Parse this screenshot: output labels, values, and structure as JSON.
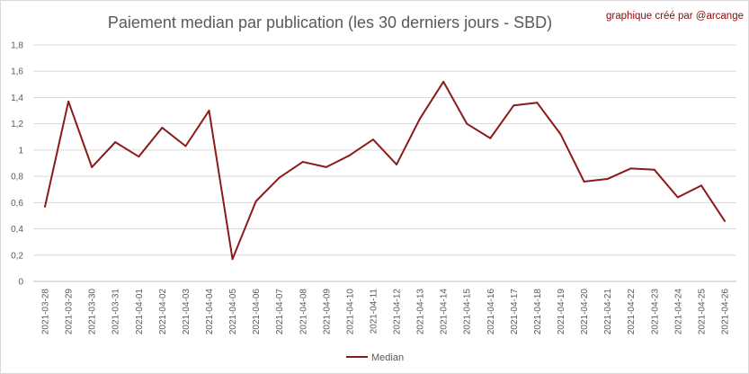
{
  "chart_data": {
    "type": "line",
    "title": "Paiement median par publication (les 30 derniers jours - SBD)",
    "credit": "graphique créé par @arcange",
    "xlabel": "",
    "ylabel": "",
    "ylim": [
      0,
      1.8
    ],
    "yticks": [
      "0",
      "0,2",
      "0,4",
      "0,6",
      "0,8",
      "1",
      "1,2",
      "1,4",
      "1,6",
      "1,8"
    ],
    "grid": true,
    "legend_position": "bottom",
    "categories": [
      "2021-03-28",
      "2021-03-29",
      "2021-03-30",
      "2021-03-31",
      "2021-04-01",
      "2021-04-02",
      "2021-04-03",
      "2021-04-04",
      "2021-04-05",
      "2021-04-06",
      "2021-04-07",
      "2021-04-08",
      "2021-04-09",
      "2021-04-10",
      "2021-04-11",
      "2021-04-12",
      "2021-04-13",
      "2021-04-14",
      "2021-04-15",
      "2021-04-16",
      "2021-04-17",
      "2021-04-18",
      "2021-04-19",
      "2021-04-20",
      "2021-04-21",
      "2021-04-22",
      "2021-04-23",
      "2021-04-24",
      "2021-04-25",
      "2021-04-26"
    ],
    "series": [
      {
        "name": "Median",
        "color": "#8b1a1a",
        "values": [
          0.57,
          1.37,
          0.87,
          1.06,
          0.95,
          1.17,
          1.03,
          1.3,
          0.17,
          0.61,
          0.79,
          0.91,
          0.87,
          0.96,
          1.08,
          0.89,
          1.24,
          1.52,
          1.2,
          1.09,
          1.34,
          1.36,
          1.12,
          0.76,
          0.78,
          0.86,
          0.85,
          0.64,
          0.73,
          0.46
        ]
      }
    ]
  }
}
